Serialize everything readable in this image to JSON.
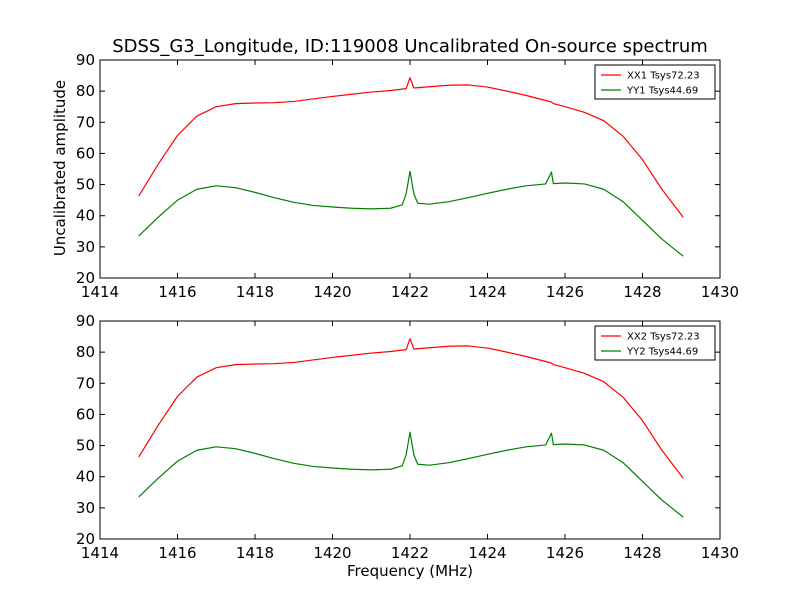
{
  "chart_data": [
    {
      "type": "line",
      "title": "SDSS_G3_Longitude, ID:119008 Uncalibrated On-source spectrum",
      "xlabel": "",
      "ylabel": "Uncalibrated amplitude",
      "xlim": [
        1414,
        1430
      ],
      "ylim": [
        20,
        90
      ],
      "xticks": [
        "1414",
        "1416",
        "1418",
        "1420",
        "1422",
        "1424",
        "1426",
        "1428",
        "1430"
      ],
      "yticks": [
        "20",
        "30",
        "40",
        "50",
        "60",
        "70",
        "80",
        "90"
      ],
      "legend_position": "top-right",
      "grid": false,
      "series": [
        {
          "name": "XX1 Tsys72.23",
          "color": "#ff0000",
          "x": [
            1415.0,
            1415.5,
            1416.0,
            1416.5,
            1417.0,
            1417.5,
            1418.0,
            1418.5,
            1419.0,
            1419.5,
            1420.0,
            1420.5,
            1421.0,
            1421.5,
            1421.9,
            1422.0,
            1422.1,
            1422.5,
            1423.0,
            1423.5,
            1424.0,
            1424.5,
            1425.0,
            1425.5,
            1425.65,
            1425.7,
            1426.0,
            1426.5,
            1427.0,
            1427.5,
            1428.0,
            1428.5,
            1429.05
          ],
          "y": [
            46.3,
            56.5,
            65.8,
            72.0,
            75.0,
            76.0,
            76.2,
            76.3,
            76.7,
            77.5,
            78.3,
            79.0,
            79.7,
            80.2,
            80.8,
            84.3,
            81.0,
            81.4,
            81.9,
            82.0,
            81.3,
            80.0,
            78.6,
            77.0,
            76.5,
            76.0,
            75.0,
            73.2,
            70.5,
            65.5,
            58.0,
            48.5,
            39.5
          ]
        },
        {
          "name": "YY1 Tsys44.69",
          "color": "#008000",
          "x": [
            1415.0,
            1415.5,
            1416.0,
            1416.5,
            1417.0,
            1417.5,
            1418.0,
            1418.5,
            1419.0,
            1419.5,
            1420.0,
            1420.5,
            1421.0,
            1421.5,
            1421.8,
            1421.9,
            1422.0,
            1422.1,
            1422.2,
            1422.5,
            1423.0,
            1423.5,
            1424.0,
            1424.5,
            1425.0,
            1425.5,
            1425.65,
            1425.7,
            1426.0,
            1426.5,
            1427.0,
            1427.5,
            1428.0,
            1428.5,
            1429.05
          ],
          "y": [
            33.5,
            39.5,
            45.0,
            48.5,
            49.6,
            49.0,
            47.5,
            45.8,
            44.3,
            43.3,
            42.8,
            42.4,
            42.2,
            42.4,
            43.5,
            47.0,
            54.3,
            47.0,
            44.0,
            43.7,
            44.5,
            45.8,
            47.2,
            48.5,
            49.6,
            50.2,
            54.0,
            50.3,
            50.5,
            50.2,
            48.5,
            44.5,
            38.5,
            32.5,
            27.0
          ]
        }
      ]
    },
    {
      "type": "line",
      "title": "",
      "xlabel": "Frequency (MHz)",
      "ylabel": "",
      "xlim": [
        1414,
        1430
      ],
      "ylim": [
        20,
        90
      ],
      "xticks": [
        "1414",
        "1416",
        "1418",
        "1420",
        "1422",
        "1424",
        "1426",
        "1428",
        "1430"
      ],
      "yticks": [
        "20",
        "30",
        "40",
        "50",
        "60",
        "70",
        "80",
        "90"
      ],
      "legend_position": "top-right",
      "grid": false,
      "series": [
        {
          "name": "XX2 Tsys72.23",
          "color": "#ff0000",
          "x": [
            1415.0,
            1415.5,
            1416.0,
            1416.5,
            1417.0,
            1417.5,
            1418.0,
            1418.5,
            1419.0,
            1419.5,
            1420.0,
            1420.5,
            1421.0,
            1421.5,
            1421.9,
            1422.0,
            1422.1,
            1422.5,
            1423.0,
            1423.5,
            1424.0,
            1424.5,
            1425.0,
            1425.5,
            1425.65,
            1425.7,
            1426.0,
            1426.5,
            1427.0,
            1427.5,
            1428.0,
            1428.5,
            1429.05
          ],
          "y": [
            46.3,
            56.5,
            65.8,
            72.0,
            75.0,
            76.0,
            76.2,
            76.3,
            76.7,
            77.5,
            78.3,
            79.0,
            79.7,
            80.2,
            80.8,
            84.3,
            81.0,
            81.4,
            81.9,
            82.0,
            81.3,
            80.0,
            78.6,
            77.0,
            76.5,
            76.0,
            75.0,
            73.2,
            70.5,
            65.5,
            58.0,
            48.5,
            39.5
          ]
        },
        {
          "name": "YY2 Tsys44.69",
          "color": "#008000",
          "x": [
            1415.0,
            1415.5,
            1416.0,
            1416.5,
            1417.0,
            1417.5,
            1418.0,
            1418.5,
            1419.0,
            1419.5,
            1420.0,
            1420.5,
            1421.0,
            1421.5,
            1421.8,
            1421.9,
            1422.0,
            1422.1,
            1422.2,
            1422.5,
            1423.0,
            1423.5,
            1424.0,
            1424.5,
            1425.0,
            1425.5,
            1425.65,
            1425.7,
            1426.0,
            1426.5,
            1427.0,
            1427.5,
            1428.0,
            1428.5,
            1429.05
          ],
          "y": [
            33.5,
            39.5,
            45.0,
            48.5,
            49.6,
            49.0,
            47.5,
            45.8,
            44.3,
            43.3,
            42.8,
            42.4,
            42.2,
            42.4,
            43.5,
            47.0,
            54.3,
            47.0,
            44.0,
            43.7,
            44.5,
            45.8,
            47.2,
            48.5,
            49.6,
            50.2,
            54.0,
            50.3,
            50.5,
            50.2,
            48.5,
            44.5,
            38.5,
            32.5,
            27.0
          ]
        }
      ]
    }
  ]
}
